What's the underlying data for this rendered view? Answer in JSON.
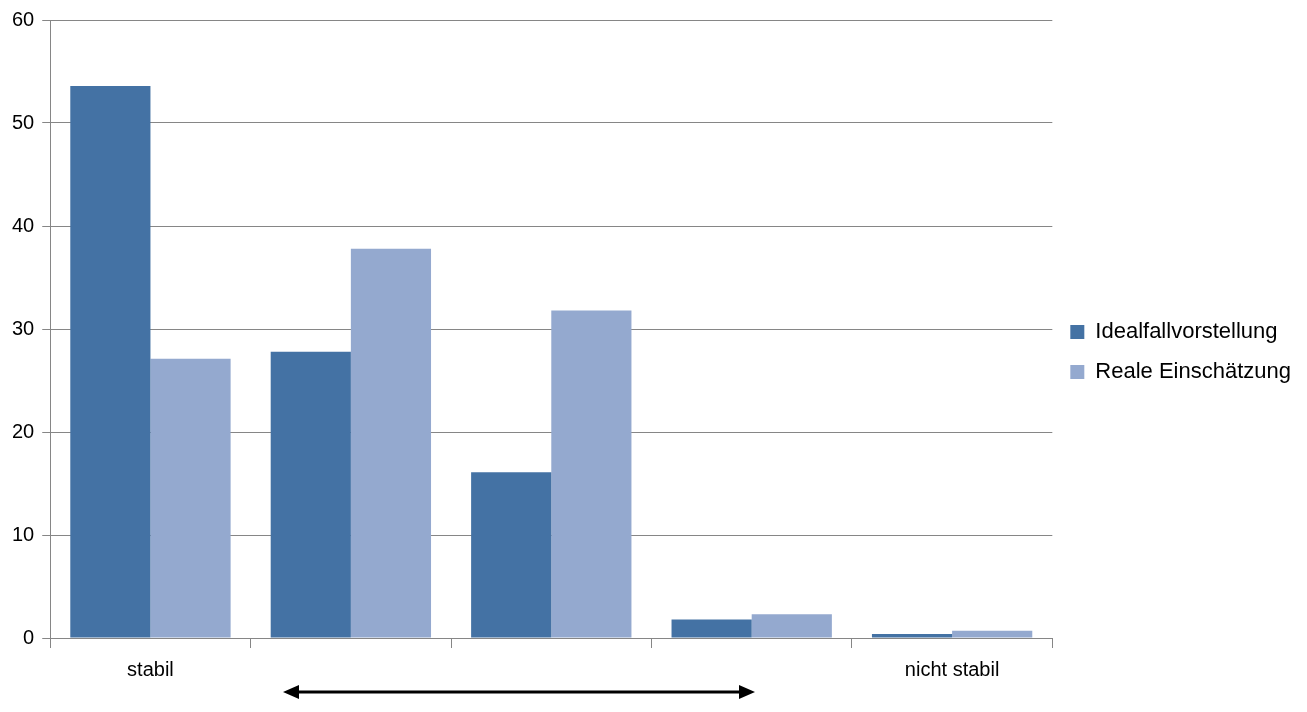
{
  "chart_data": {
    "type": "bar",
    "categories": [
      "stabil",
      null,
      null,
      null,
      "nicht stabil"
    ],
    "series": [
      {
        "name": "Idealfallvorstellung",
        "color": "#4472a4",
        "values": [
          53.6,
          27.8,
          16.1,
          1.8,
          0.4
        ]
      },
      {
        "name": "Reale Einschätzung",
        "color": "#94a9cf",
        "values": [
          27.1,
          37.8,
          31.8,
          2.3,
          0.7
        ]
      }
    ],
    "ylim": [
      0,
      60
    ],
    "yticks": [
      0,
      10,
      20,
      30,
      40,
      50,
      60
    ],
    "grid": "y",
    "legend": "right"
  }
}
